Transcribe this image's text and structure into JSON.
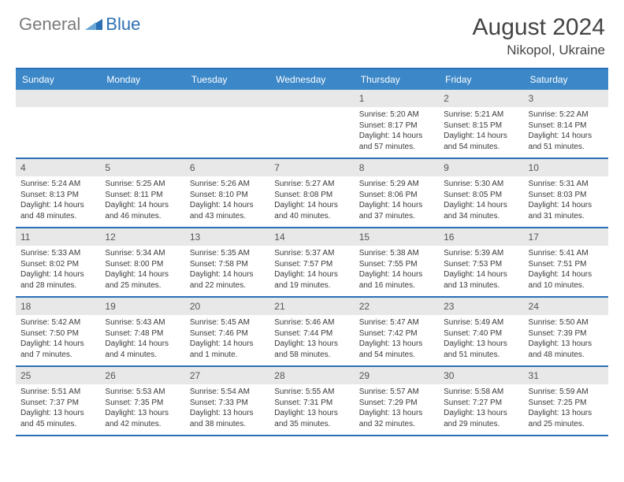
{
  "brand": {
    "gray": "General",
    "blue": "Blue"
  },
  "title": "August 2024",
  "location": "Nikopol, Ukraine",
  "colors": {
    "header_bg": "#3b87c8",
    "border": "#2b6fb5",
    "daynum_bg": "#e8e8e8",
    "text": "#3a3a3a"
  },
  "day_names": [
    "Sunday",
    "Monday",
    "Tuesday",
    "Wednesday",
    "Thursday",
    "Friday",
    "Saturday"
  ],
  "weeks": [
    [
      null,
      null,
      null,
      null,
      {
        "n": "1",
        "sr": "5:20 AM",
        "ss": "8:17 PM",
        "dl": "14 hours and 57 minutes."
      },
      {
        "n": "2",
        "sr": "5:21 AM",
        "ss": "8:15 PM",
        "dl": "14 hours and 54 minutes."
      },
      {
        "n": "3",
        "sr": "5:22 AM",
        "ss": "8:14 PM",
        "dl": "14 hours and 51 minutes."
      }
    ],
    [
      {
        "n": "4",
        "sr": "5:24 AM",
        "ss": "8:13 PM",
        "dl": "14 hours and 48 minutes."
      },
      {
        "n": "5",
        "sr": "5:25 AM",
        "ss": "8:11 PM",
        "dl": "14 hours and 46 minutes."
      },
      {
        "n": "6",
        "sr": "5:26 AM",
        "ss": "8:10 PM",
        "dl": "14 hours and 43 minutes."
      },
      {
        "n": "7",
        "sr": "5:27 AM",
        "ss": "8:08 PM",
        "dl": "14 hours and 40 minutes."
      },
      {
        "n": "8",
        "sr": "5:29 AM",
        "ss": "8:06 PM",
        "dl": "14 hours and 37 minutes."
      },
      {
        "n": "9",
        "sr": "5:30 AM",
        "ss": "8:05 PM",
        "dl": "14 hours and 34 minutes."
      },
      {
        "n": "10",
        "sr": "5:31 AM",
        "ss": "8:03 PM",
        "dl": "14 hours and 31 minutes."
      }
    ],
    [
      {
        "n": "11",
        "sr": "5:33 AM",
        "ss": "8:02 PM",
        "dl": "14 hours and 28 minutes."
      },
      {
        "n": "12",
        "sr": "5:34 AM",
        "ss": "8:00 PM",
        "dl": "14 hours and 25 minutes."
      },
      {
        "n": "13",
        "sr": "5:35 AM",
        "ss": "7:58 PM",
        "dl": "14 hours and 22 minutes."
      },
      {
        "n": "14",
        "sr": "5:37 AM",
        "ss": "7:57 PM",
        "dl": "14 hours and 19 minutes."
      },
      {
        "n": "15",
        "sr": "5:38 AM",
        "ss": "7:55 PM",
        "dl": "14 hours and 16 minutes."
      },
      {
        "n": "16",
        "sr": "5:39 AM",
        "ss": "7:53 PM",
        "dl": "14 hours and 13 minutes."
      },
      {
        "n": "17",
        "sr": "5:41 AM",
        "ss": "7:51 PM",
        "dl": "14 hours and 10 minutes."
      }
    ],
    [
      {
        "n": "18",
        "sr": "5:42 AM",
        "ss": "7:50 PM",
        "dl": "14 hours and 7 minutes."
      },
      {
        "n": "19",
        "sr": "5:43 AM",
        "ss": "7:48 PM",
        "dl": "14 hours and 4 minutes."
      },
      {
        "n": "20",
        "sr": "5:45 AM",
        "ss": "7:46 PM",
        "dl": "14 hours and 1 minute."
      },
      {
        "n": "21",
        "sr": "5:46 AM",
        "ss": "7:44 PM",
        "dl": "13 hours and 58 minutes."
      },
      {
        "n": "22",
        "sr": "5:47 AM",
        "ss": "7:42 PM",
        "dl": "13 hours and 54 minutes."
      },
      {
        "n": "23",
        "sr": "5:49 AM",
        "ss": "7:40 PM",
        "dl": "13 hours and 51 minutes."
      },
      {
        "n": "24",
        "sr": "5:50 AM",
        "ss": "7:39 PM",
        "dl": "13 hours and 48 minutes."
      }
    ],
    [
      {
        "n": "25",
        "sr": "5:51 AM",
        "ss": "7:37 PM",
        "dl": "13 hours and 45 minutes."
      },
      {
        "n": "26",
        "sr": "5:53 AM",
        "ss": "7:35 PM",
        "dl": "13 hours and 42 minutes."
      },
      {
        "n": "27",
        "sr": "5:54 AM",
        "ss": "7:33 PM",
        "dl": "13 hours and 38 minutes."
      },
      {
        "n": "28",
        "sr": "5:55 AM",
        "ss": "7:31 PM",
        "dl": "13 hours and 35 minutes."
      },
      {
        "n": "29",
        "sr": "5:57 AM",
        "ss": "7:29 PM",
        "dl": "13 hours and 32 minutes."
      },
      {
        "n": "30",
        "sr": "5:58 AM",
        "ss": "7:27 PM",
        "dl": "13 hours and 29 minutes."
      },
      {
        "n": "31",
        "sr": "5:59 AM",
        "ss": "7:25 PM",
        "dl": "13 hours and 25 minutes."
      }
    ]
  ],
  "labels": {
    "sunrise": "Sunrise:",
    "sunset": "Sunset:",
    "daylight": "Daylight:"
  }
}
